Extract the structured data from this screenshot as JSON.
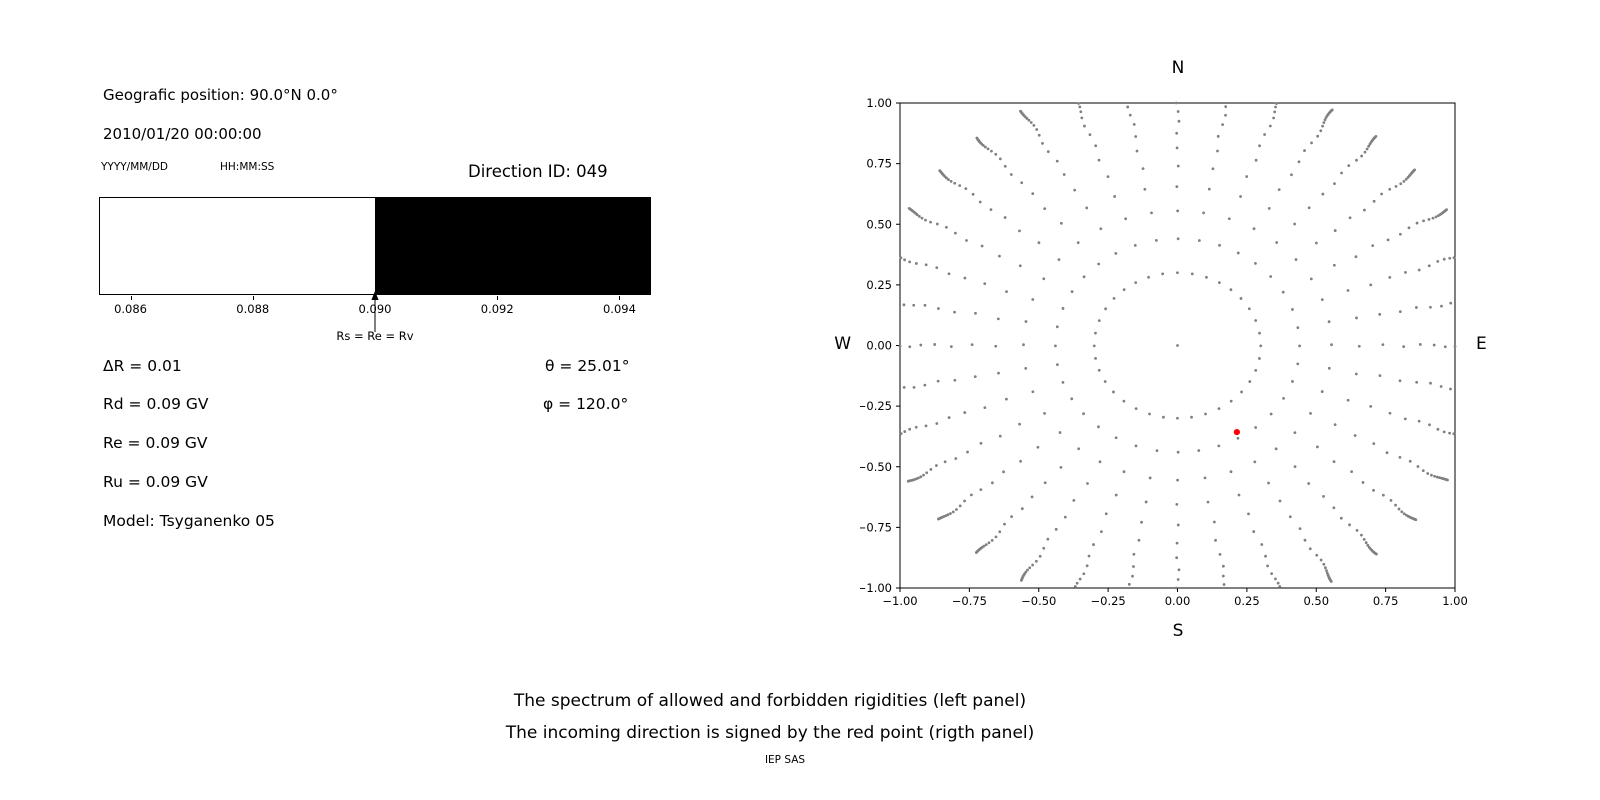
{
  "left_panel": {
    "geographic_position": "Geografic position: 90.0°N 0.0°",
    "datetime": "2010/01/20 00:00:00",
    "date_format_hint": "YYYY/MM/DD",
    "time_format_hint": "HH:MM:SS",
    "direction_id": "Direction ID: 049",
    "rs_annotation": "Rs = Re = Rv",
    "delta_r": "ΔR = 0.01",
    "rd": "Rd = 0.09 GV",
    "re": "Re = 0.09 GV",
    "ru": "Ru = 0.09 GV",
    "model": "Model: Tsyganenko 05",
    "theta": "θ = 25.01°",
    "phi": "φ = 120.0°"
  },
  "caption": {
    "line1": "The spectrum of allowed and forbidden rigidities (left panel)",
    "line2": "The incoming direction is signed by the red point (rigth panel)",
    "credit": "IEP SAS"
  },
  "chart_data": [
    {
      "type": "bar",
      "name": "allowed-forbidden-rigidity-spectrum",
      "x_min": 0.0855,
      "x_max": 0.0945,
      "ticks": [
        0.086,
        0.088,
        0.09,
        0.092,
        0.094
      ],
      "tick_labels": [
        "0.086",
        "0.088",
        "0.090",
        "0.092",
        "0.094"
      ],
      "regions": [
        {
          "label": "allowed",
          "from": 0.0855,
          "to": 0.09,
          "color": "#ffffff"
        },
        {
          "label": "forbidden",
          "from": 0.09,
          "to": 0.0945,
          "color": "#000000"
        }
      ],
      "annotation": {
        "text": "Rs = Re = Rv",
        "x": 0.09
      }
    },
    {
      "type": "scatter",
      "name": "incoming-direction-map",
      "xlim": [
        -1,
        1
      ],
      "ylim": [
        -1,
        1
      ],
      "tick_values": [
        -1,
        -0.75,
        -0.5,
        -0.25,
        0,
        0.25,
        0.5,
        0.75,
        1
      ],
      "tick_labels": [
        "−1.00",
        "−0.75",
        "−0.50",
        "−0.25",
        "0.00",
        "0.25",
        "0.50",
        "0.75",
        "1.00"
      ],
      "compass": {
        "top": "N",
        "bottom": "S",
        "left": "W",
        "right": "E"
      },
      "grid_dots": {
        "color": "#808080",
        "azimuth_count": 36,
        "center_dot": true,
        "radii": [
          0.3,
          0.44,
          0.555,
          0.655,
          0.74,
          0.815,
          0.875,
          0.925,
          0.965,
          1.0,
          1.025,
          1.045,
          1.06,
          1.072,
          1.082,
          1.09,
          1.097,
          1.103,
          1.108,
          1.112,
          1.116,
          1.12
        ]
      },
      "red_point": {
        "x": 0.214,
        "y": -0.357,
        "color": "#ff0000",
        "theta_deg": 25.01,
        "phi_deg": 120.0
      }
    }
  ]
}
